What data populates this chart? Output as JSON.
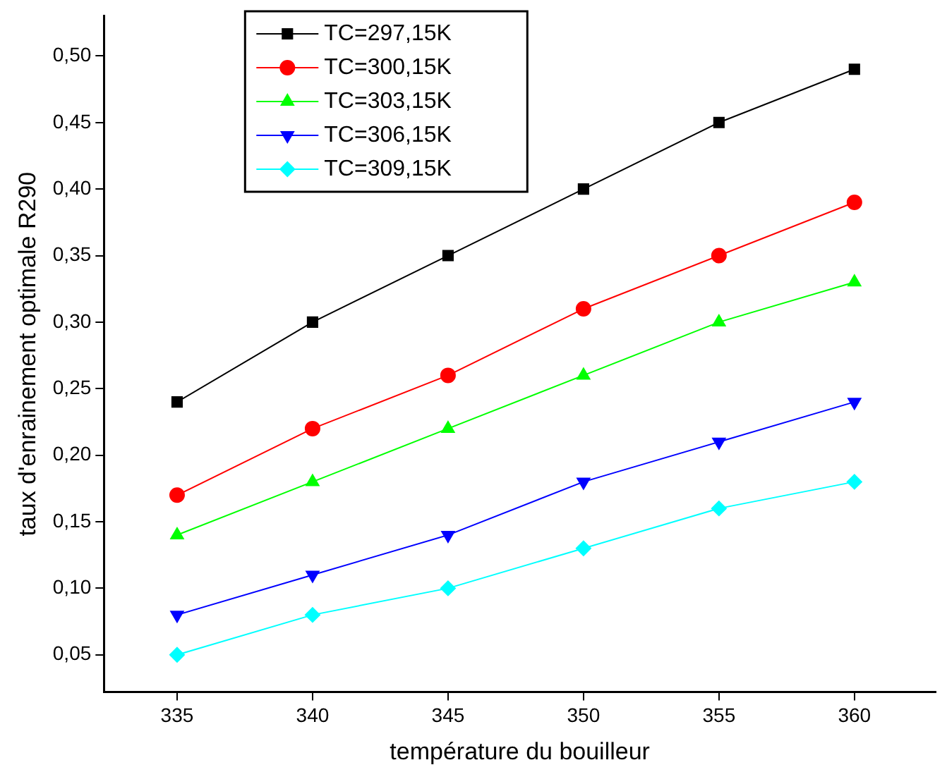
{
  "chart_data": {
    "type": "line",
    "xlabel": "température du bouilleur",
    "ylabel": "taux d'enrainement optimale R290",
    "x": [
      335,
      340,
      345,
      350,
      355,
      360
    ],
    "series": [
      {
        "name": "TC=297,15K",
        "color": "#000000",
        "marker": "square",
        "values": [
          0.24,
          0.3,
          0.35,
          0.4,
          0.45,
          0.49
        ]
      },
      {
        "name": "TC=300,15K",
        "color": "#ff0000",
        "marker": "circle",
        "values": [
          0.17,
          0.22,
          0.26,
          0.31,
          0.35,
          0.39
        ]
      },
      {
        "name": "TC=303,15K",
        "color": "#00ff00",
        "marker": "triangle",
        "values": [
          0.14,
          0.18,
          0.22,
          0.26,
          0.3,
          0.33
        ]
      },
      {
        "name": "TC=306,15K",
        "color": "#0000ff",
        "marker": "triangle-down",
        "values": [
          0.08,
          0.11,
          0.14,
          0.18,
          0.21,
          0.24
        ]
      },
      {
        "name": "TC=309,15K",
        "color": "#00ffff",
        "marker": "diamond",
        "values": [
          0.05,
          0.08,
          0.1,
          0.13,
          0.16,
          0.18
        ]
      }
    ],
    "xlim": [
      332.3,
      363
    ],
    "xticks": [
      335,
      340,
      345,
      350,
      355,
      360
    ],
    "ylim": [
      0.022,
      0.53
    ],
    "yticks": [
      {
        "value": 0.05,
        "label": "0,05"
      },
      {
        "value": 0.1,
        "label": "0,10"
      },
      {
        "value": 0.15,
        "label": "0,15"
      },
      {
        "value": 0.2,
        "label": "0,20"
      },
      {
        "value": 0.25,
        "label": "0,25"
      },
      {
        "value": 0.3,
        "label": "0,30"
      },
      {
        "value": 0.35,
        "label": "0,35"
      },
      {
        "value": 0.4,
        "label": "0,40"
      },
      {
        "value": 0.45,
        "label": "0,45"
      },
      {
        "value": 0.5,
        "label": "0,50"
      }
    ],
    "legend": "top left",
    "grid": false,
    "line_style": "solid"
  }
}
